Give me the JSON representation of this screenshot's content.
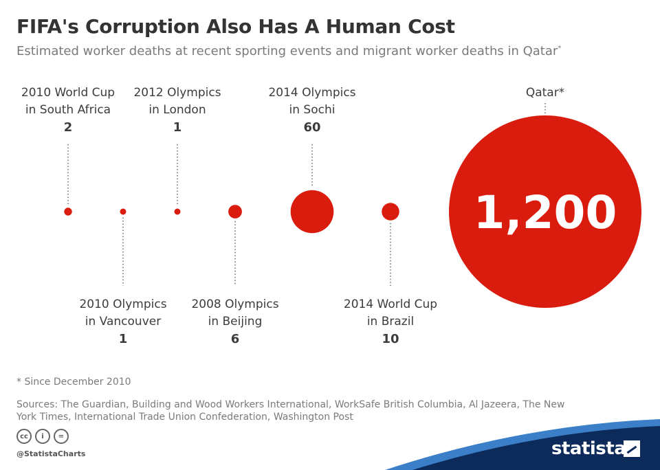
{
  "header": {
    "title": "FIFA's Corruption Also Has A Human Cost",
    "subtitle": "Estimated worker deaths at recent sporting events and migrant worker deaths in Qatar",
    "subtitle_mark": "*"
  },
  "chart_data": {
    "type": "bubble",
    "title": "FIFA's Corruption Also Has A Human Cost",
    "subtitle": "Estimated worker deaths at recent sporting events and migrant worker deaths in Qatar*",
    "unit": "worker deaths",
    "color": "#d91c0e",
    "points": [
      {
        "label_lines": [
          "2010 World Cup",
          "in South Africa"
        ],
        "value": 2,
        "value_label": "2",
        "label_pos": "top"
      },
      {
        "label_lines": [
          "2010 Olympics",
          "in Vancouver"
        ],
        "value": 1,
        "value_label": "1",
        "label_pos": "bottom"
      },
      {
        "label_lines": [
          "2012 Olympics",
          "in London"
        ],
        "value": 1,
        "value_label": "1",
        "label_pos": "top"
      },
      {
        "label_lines": [
          "2008 Olympics",
          "in Beijing"
        ],
        "value": 6,
        "value_label": "6",
        "label_pos": "bottom"
      },
      {
        "label_lines": [
          "2014 Olympics",
          "in Sochi"
        ],
        "value": 60,
        "value_label": "60",
        "label_pos": "top"
      },
      {
        "label_lines": [
          "2014 World Cup",
          "in Brazil"
        ],
        "value": 10,
        "value_label": "10",
        "label_pos": "bottom"
      },
      {
        "label_lines": [
          "Qatar*"
        ],
        "value": 1200,
        "value_label": "1,200",
        "label_pos": "top",
        "value_inside": true
      }
    ]
  },
  "footer": {
    "footnote": "* Since December 2010",
    "sources": "Sources: The Guardian, Building and Wood Workers International, WorkSafe British Columbia, Al Jazeera, The New York Times, International Trade Union Confederation, Washington Post",
    "license_icons": [
      {
        "name": "cc-icon",
        "text": "cc"
      },
      {
        "name": "attribution-icon",
        "text": "i"
      },
      {
        "name": "no-derivatives-icon",
        "text": "="
      }
    ],
    "handle": "@StatistaCharts",
    "brand": "statista",
    "band_color": "#0d2b5a",
    "band_accent": "#3a7fc8"
  }
}
